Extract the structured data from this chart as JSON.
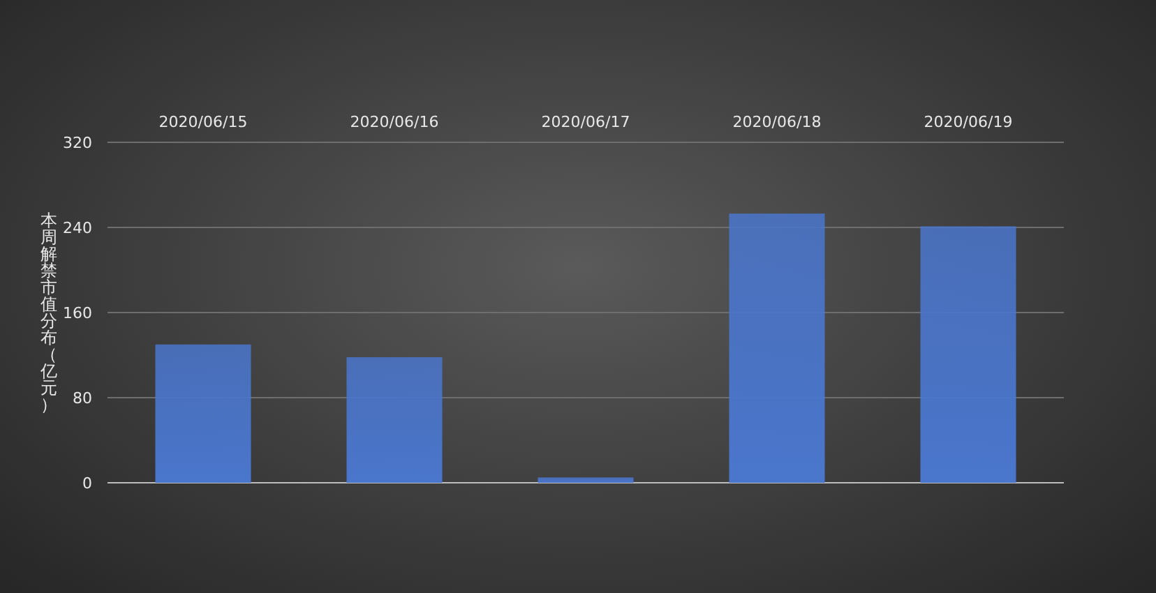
{
  "chart_data": {
    "type": "bar",
    "ylabel": "本周解禁市值分布（亿元）",
    "categories": [
      "2020/06/15",
      "2020/06/16",
      "2020/06/17",
      "2020/06/18",
      "2020/06/19"
    ],
    "values": [
      130,
      118,
      5,
      253,
      241
    ],
    "color": "#4a76cc",
    "ylim": [
      0,
      320
    ],
    "yticks": [
      0,
      80,
      160,
      240,
      320
    ],
    "grid": "y"
  }
}
